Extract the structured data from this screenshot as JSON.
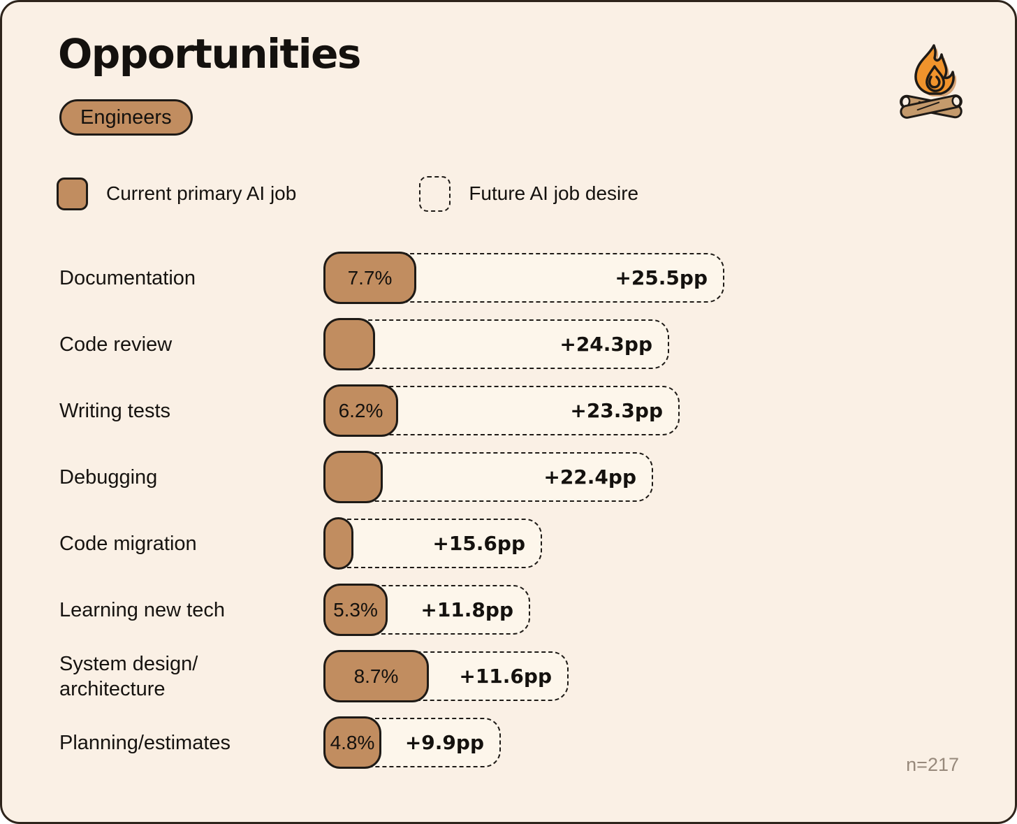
{
  "header": {
    "title": "Opportunities",
    "badge": "Engineers"
  },
  "legend": {
    "items": [
      {
        "label": "Current primary AI job",
        "style": "solid"
      },
      {
        "label": "Future AI job desire",
        "style": "dashed"
      }
    ]
  },
  "footer": {
    "note": "n=217"
  },
  "icon": {
    "name": "campfire",
    "flame_color": "#F0932C",
    "log_color": "#C49A6C"
  },
  "colors": {
    "card_background": "#FAF0E5",
    "card_border": "#2E241B",
    "bar_fill": "#C18D60",
    "bar_border": "#1E1A16",
    "future_fill": "#FDF6EB",
    "text": "#14110E",
    "note": "#97897B"
  },
  "chart_data": {
    "type": "bar",
    "orientation": "horizontal",
    "title": "Opportunities",
    "subtitle": "Engineers",
    "unit": "percent (current) / percentage points (future increase)",
    "categories": [
      "Documentation",
      "Code review",
      "Writing tests",
      "Debugging",
      "Code migration",
      "Learning new tech",
      "System design/\narchitecture",
      "Planning/estimates"
    ],
    "series": [
      {
        "name": "Current primary AI job",
        "values": [
          7.7,
          4.3,
          6.2,
          4.9,
          2.5,
          5.3,
          8.7,
          4.8
        ],
        "labels": [
          "7.7%",
          "",
          "6.2%",
          "",
          "",
          "5.3%",
          "8.7%",
          "4.8%"
        ]
      },
      {
        "name": "Future AI job desire (increase)",
        "values": [
          25.5,
          24.3,
          23.3,
          22.4,
          15.6,
          11.8,
          11.6,
          9.9
        ],
        "labels": [
          "+25.5pp",
          "+24.3pp",
          "+23.3pp",
          "+22.4pp",
          "+15.6pp",
          "+11.8pp",
          "+11.6pp",
          "+9.9pp"
        ]
      }
    ],
    "xlim": [
      0,
      35
    ],
    "legend_position": "top",
    "sample_size": "n=217"
  }
}
